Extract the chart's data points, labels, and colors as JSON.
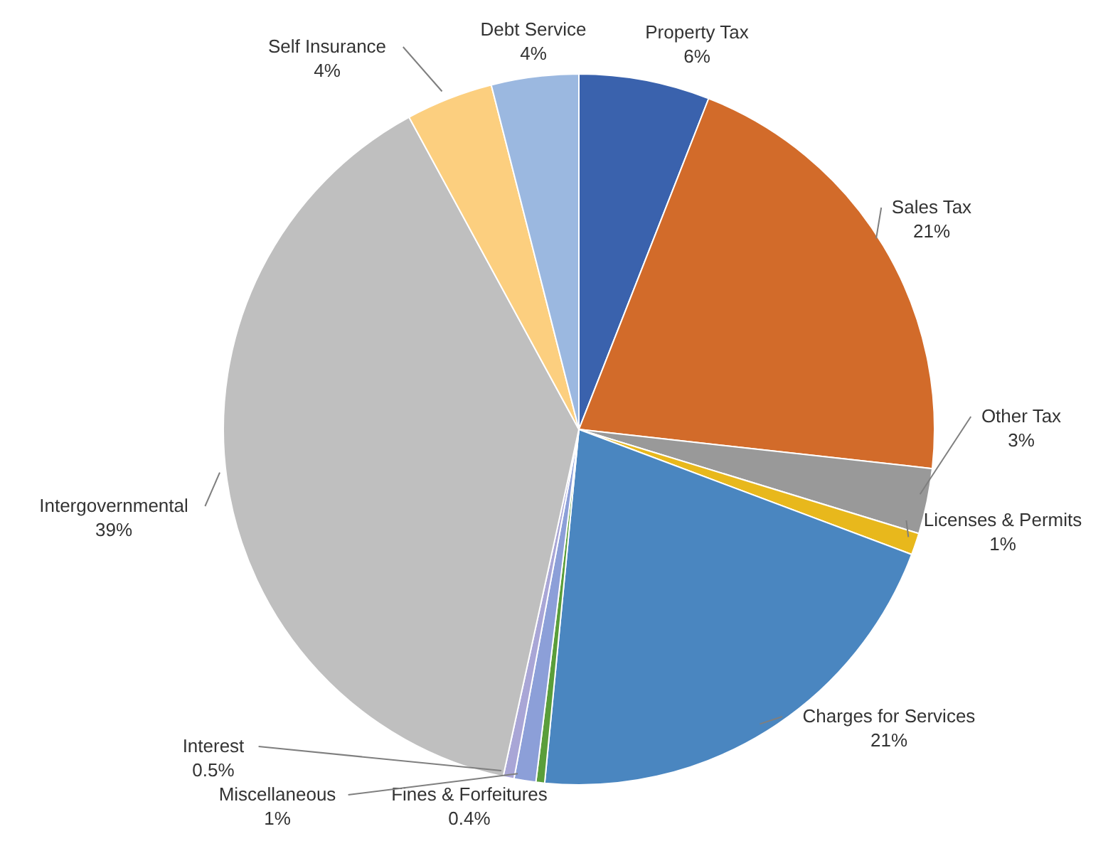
{
  "chart_data": {
    "type": "pie",
    "categories": [
      "Property Tax",
      "Sales Tax",
      "Other Tax",
      "Licenses & Permits",
      "Charges for Services",
      "Fines & Forfeitures",
      "Miscellaneous",
      "Interest",
      "Intergovernmental",
      "Self Insurance",
      "Debt Service"
    ],
    "values": [
      6,
      21,
      3,
      1,
      21,
      0.4,
      1,
      0.5,
      39,
      4,
      4
    ],
    "value_labels": [
      "6%",
      "21%",
      "3%",
      "1%",
      "21%",
      "0.4%",
      "1%",
      "0.5%",
      "39%",
      "4%",
      "4%"
    ],
    "colors": [
      "#3a62ad",
      "#d26b2a",
      "#999999",
      "#e8b81c",
      "#4a86c0",
      "#5a9e3a",
      "#8c9fd8",
      "#a9a6d6",
      "#bfbfbf",
      "#fccf7f",
      "#9bb8e0"
    ],
    "legend": false
  }
}
